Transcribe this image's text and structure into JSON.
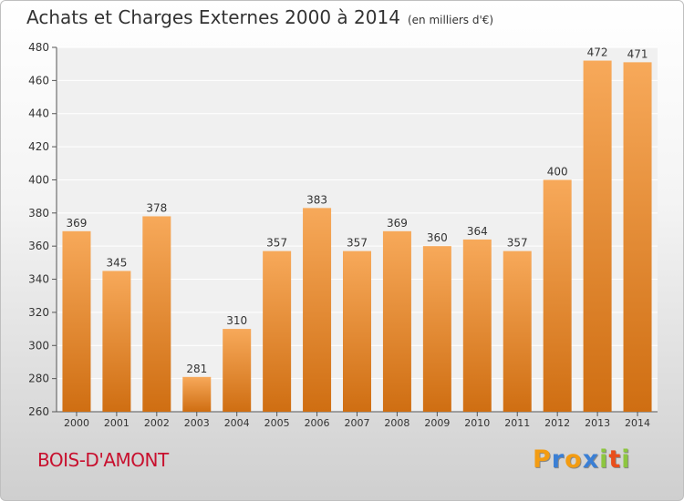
{
  "title": "Achats et Charges Externes 2000 à 2014",
  "unit_note": "(en milliers d'€)",
  "town": "BOIS-D'AMONT",
  "logo": {
    "letters": [
      "P",
      "r",
      "o",
      "x",
      "i",
      "t",
      "i"
    ],
    "colors": [
      "#f39c12",
      "#3a7fd5",
      "#f39c12",
      "#3a7fd5",
      "#8dc63f",
      "#e94e1b",
      "#8dc63f"
    ]
  },
  "colors": {
    "bar_top": "#f7a95a",
    "bar_bottom": "#cf6e12",
    "town": "#c8102e"
  },
  "chart_data": {
    "type": "bar",
    "categories": [
      "2000",
      "2001",
      "2002",
      "2003",
      "2004",
      "2005",
      "2006",
      "2007",
      "2008",
      "2009",
      "2010",
      "2011",
      "2012",
      "2013",
      "2014"
    ],
    "values": [
      369,
      345,
      378,
      281,
      310,
      357,
      383,
      357,
      369,
      360,
      364,
      357,
      400,
      472,
      471
    ],
    "ylim": [
      260,
      480
    ],
    "yticks": [
      260,
      280,
      300,
      320,
      340,
      360,
      380,
      400,
      420,
      440,
      460,
      480
    ],
    "grid": "horizontal",
    "data_labels": true
  }
}
